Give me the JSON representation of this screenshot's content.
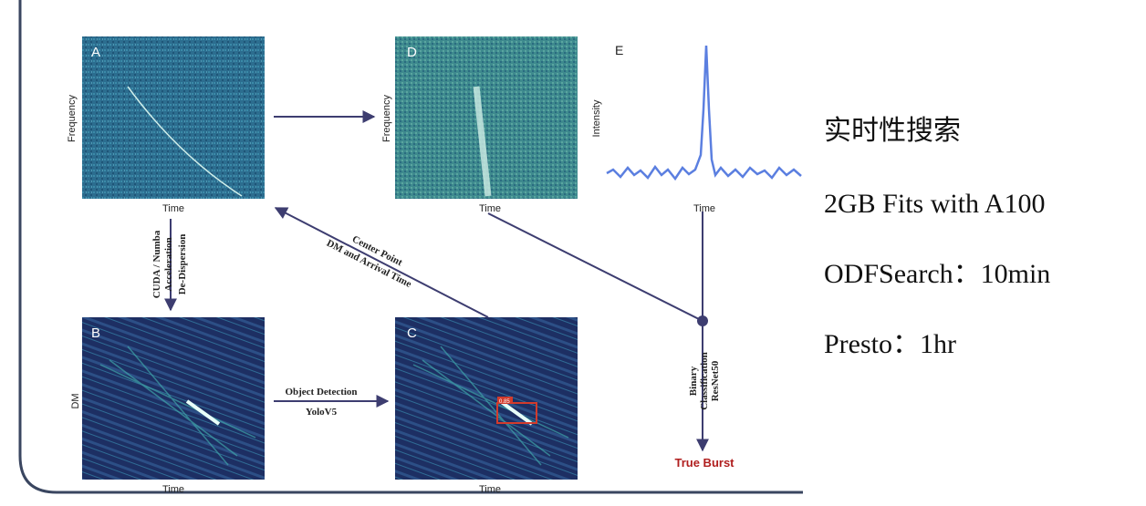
{
  "panels": [
    {
      "letter": "A",
      "x_label": "Time",
      "y_label": "Frequency"
    },
    {
      "letter": "D",
      "x_label": "Time",
      "y_label": "Frequency"
    },
    {
      "letter": "E",
      "x_label": "Time",
      "y_label": "Intensity"
    },
    {
      "letter": "B",
      "x_label": "Time",
      "y_label": "DM"
    },
    {
      "letter": "C",
      "x_label": "Time",
      "score": "0.85"
    }
  ],
  "steps": {
    "dedispersion": [
      "CUDA / Numba",
      "Acceleration",
      "De-Dispersion"
    ],
    "feedback": [
      "Center Point",
      "DM and Arrival Time"
    ],
    "detection": [
      "Object Detection",
      "YoloV5"
    ],
    "classification": [
      "Binary",
      "Classification",
      "ResNet50"
    ]
  },
  "result": "True Burst",
  "summary": [
    "实时性搜索",
    "2GB Fits with A100",
    "ODFSearch：10min",
    "Presto：1hr"
  ]
}
